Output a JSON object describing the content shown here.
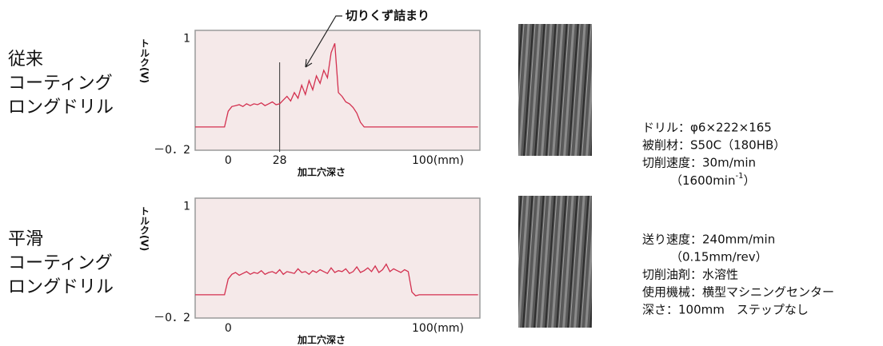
{
  "chart_data": [
    {
      "type": "line",
      "y_label": "トルク(V)",
      "x_label": "加工穴深さ",
      "annotation": "切りくず詰まり",
      "xlim": [
        -18,
        137
      ],
      "ylim": [
        -0.2,
        1.09
      ],
      "xticks": [
        0,
        28,
        {
          "value": 100,
          "label": "100(mm)"
        }
      ],
      "yticks": [
        1,
        {
          "value": -0.2,
          "label": "－0．2"
        }
      ],
      "series": [
        {
          "name": "従来コーティングロングドリル",
          "color": "#d3304f",
          "x": [
            -18,
            -16,
            -14,
            -12,
            -10,
            -8,
            -6,
            -4,
            -2,
            0,
            2,
            4,
            6,
            8,
            10,
            12,
            14,
            16,
            18,
            20,
            22,
            24,
            26,
            28,
            30,
            32,
            34,
            36,
            38,
            40,
            42,
            44,
            46,
            48,
            50,
            52,
            54,
            56,
            58,
            60,
            62,
            64,
            66,
            68,
            70,
            72,
            74,
            76,
            78,
            80,
            82,
            84,
            86,
            88,
            90,
            92,
            94,
            96,
            98,
            100,
            102,
            104,
            106,
            108,
            110,
            112,
            114,
            116,
            118,
            120,
            122,
            124,
            126,
            128,
            130,
            132,
            134,
            136
          ],
          "values": [
            0.05,
            0.05,
            0.05,
            0.05,
            0.05,
            0.05,
            0.05,
            0.05,
            0.05,
            0.22,
            0.27,
            0.28,
            0.29,
            0.27,
            0.3,
            0.28,
            0.3,
            0.29,
            0.31,
            0.28,
            0.3,
            0.32,
            0.29,
            0.3,
            0.34,
            0.38,
            0.33,
            0.42,
            0.36,
            0.5,
            0.4,
            0.55,
            0.45,
            0.6,
            0.52,
            0.66,
            0.58,
            0.85,
            0.95,
            0.42,
            0.38,
            0.32,
            0.3,
            0.26,
            0.2,
            0.1,
            0.05,
            0.05,
            0.05,
            0.05,
            0.05,
            0.05,
            0.05,
            0.05,
            0.05,
            0.05,
            0.05,
            0.05,
            0.05,
            0.05,
            0.05,
            0.05,
            0.05,
            0.05,
            0.05,
            0.05,
            0.05,
            0.05,
            0.05,
            0.05,
            0.05,
            0.05,
            0.05,
            0.05,
            0.05,
            0.05,
            0.05,
            0.05
          ]
        }
      ]
    },
    {
      "type": "line",
      "y_label": "トルク(V)",
      "x_label": "加工穴深さ",
      "xlim": [
        -18,
        137
      ],
      "ylim": [
        -0.2,
        1.09
      ],
      "xticks": [
        0,
        {
          "value": 100,
          "label": "100(mm)"
        }
      ],
      "yticks": [
        1,
        {
          "value": -0.2,
          "label": "－0．2"
        }
      ],
      "series": [
        {
          "name": "平滑コーティングロングドリル",
          "color": "#d3304f",
          "x": [
            -18,
            -16,
            -14,
            -12,
            -10,
            -8,
            -6,
            -4,
            -2,
            0,
            2,
            4,
            6,
            8,
            10,
            12,
            14,
            16,
            18,
            20,
            22,
            24,
            26,
            28,
            30,
            32,
            34,
            36,
            38,
            40,
            42,
            44,
            46,
            48,
            50,
            52,
            54,
            56,
            58,
            60,
            62,
            64,
            66,
            68,
            70,
            72,
            74,
            76,
            78,
            80,
            82,
            84,
            86,
            88,
            90,
            92,
            94,
            96,
            98,
            100,
            102,
            104,
            106,
            108,
            110,
            112,
            114,
            116,
            118,
            120,
            122,
            124,
            126,
            128,
            130,
            132,
            134,
            136
          ],
          "values": [
            0.05,
            0.05,
            0.05,
            0.05,
            0.05,
            0.05,
            0.05,
            0.05,
            0.05,
            0.22,
            0.27,
            0.29,
            0.26,
            0.28,
            0.3,
            0.27,
            0.29,
            0.28,
            0.31,
            0.27,
            0.29,
            0.3,
            0.28,
            0.32,
            0.27,
            0.3,
            0.29,
            0.28,
            0.33,
            0.29,
            0.3,
            0.27,
            0.31,
            0.29,
            0.32,
            0.3,
            0.28,
            0.34,
            0.29,
            0.31,
            0.3,
            0.33,
            0.28,
            0.3,
            0.35,
            0.29,
            0.31,
            0.34,
            0.3,
            0.36,
            0.29,
            0.32,
            0.38,
            0.3,
            0.33,
            0.31,
            0.29,
            0.32,
            0.3,
            0.08,
            0.04,
            0.05,
            0.05,
            0.05,
            0.05,
            0.05,
            0.05,
            0.05,
            0.05,
            0.05,
            0.05,
            0.05,
            0.05,
            0.05,
            0.05,
            0.05,
            0.05,
            0.05
          ]
        }
      ]
    }
  ],
  "rows": [
    [
      "従来",
      "コーティング",
      "ロングドリル"
    ],
    [
      "平滑",
      "コーティング",
      "ロングドリル"
    ]
  ],
  "specs": [
    [
      "ドリル：φ6×222×165",
      "被削材：S50C（180HB）",
      "切削速度：30m/min",
      {
        "text": "（1600min",
        "sup": "-1",
        "after": "）"
      }
    ],
    [
      "送り速度：240mm/min",
      "（0.15mm/rev）",
      "切削油剤：水溶性",
      "使用機械：横型マシニングセンター",
      "深さ：100mm　ステップなし"
    ]
  ]
}
